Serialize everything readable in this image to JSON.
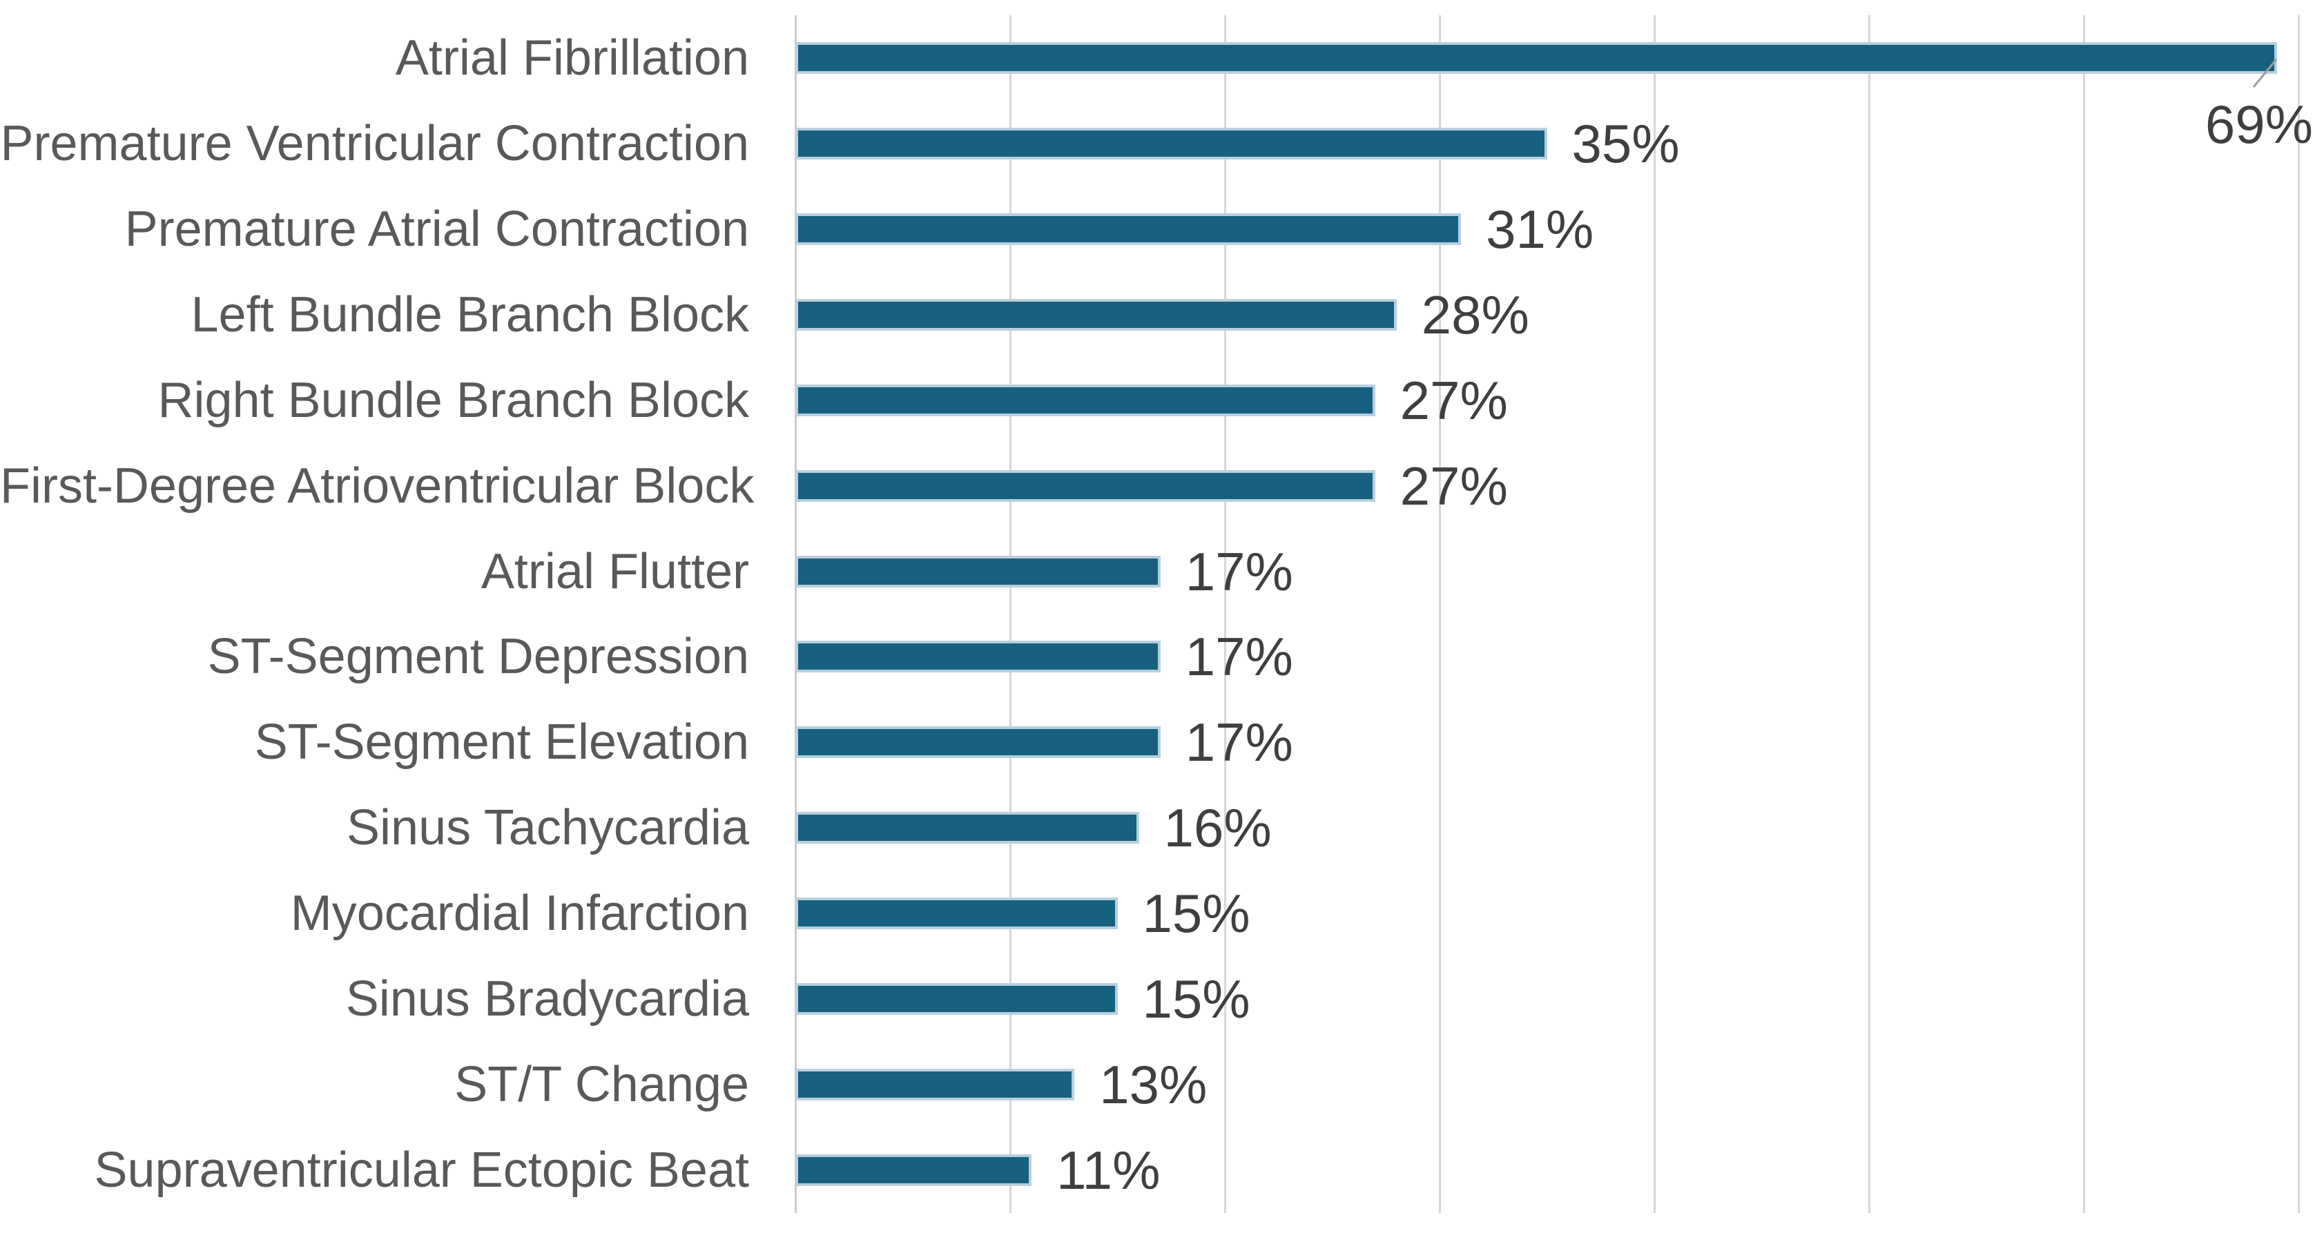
{
  "chart_data": {
    "type": "bar",
    "orientation": "horizontal",
    "title": "",
    "xlabel": "",
    "ylabel": "",
    "categories": [
      "Atrial Fibrillation",
      "Premature Ventricular Contraction",
      "Premature Atrial Contraction",
      "Left Bundle Branch Block",
      "Right Bundle Branch Block",
      "First-Degree Atrioventricular Block",
      "Atrial Flutter",
      "ST-Segment Depression",
      "ST-Segment Elevation",
      "Sinus Tachycardia",
      "Myocardial Infarction",
      "Sinus Bradycardia",
      "ST/T Change",
      "Supraventricular Ectopic Beat"
    ],
    "values": [
      69,
      35,
      31,
      28,
      27,
      27,
      17,
      17,
      17,
      16,
      15,
      15,
      13,
      11
    ],
    "value_labels": [
      "69%",
      "35%",
      "31%",
      "28%",
      "27%",
      "27%",
      "17%",
      "17%",
      "17%",
      "16%",
      "15%",
      "15%",
      "13%",
      "11%"
    ],
    "xlim": [
      0,
      70
    ],
    "gridline_step": 10,
    "grid": "vertical-only",
    "x_tick_labels_visible": false,
    "legend": "none",
    "callout": {
      "category": "Atrial Fibrillation",
      "label": "69%",
      "style": "label-below-bar-end-with-leader-line"
    },
    "colors": {
      "bar_fill": "#17607F",
      "bar_border": "#B9D0DD",
      "gridline": "#D7D7D7",
      "axis_line": "#CCCCCC",
      "category_label": "#595959",
      "value_label": "#3F3F3F",
      "leader_line": "#9E9E9E",
      "background": "#FFFFFF"
    }
  }
}
